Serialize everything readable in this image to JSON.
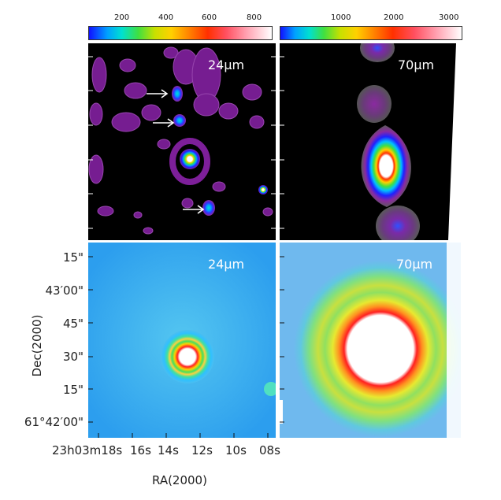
{
  "colorbars": {
    "left": {
      "ticks": [
        "200",
        "400",
        "600",
        "800"
      ]
    },
    "right": {
      "ticks": [
        "1000",
        "2000",
        "3000"
      ]
    }
  },
  "panels": {
    "top_left": {
      "band": "24μm"
    },
    "top_right": {
      "band": "70μm"
    },
    "bottom_left": {
      "band": "24μm"
    },
    "bottom_right": {
      "band": "70μm"
    }
  },
  "axes": {
    "y_title": "Dec(2000)",
    "x_title": "RA(2000)",
    "dec_ticks": [
      "15\"",
      "43′00\"",
      "45\"",
      "30\"",
      "15\"",
      "61°42′00\""
    ],
    "ra_ticks": [
      "23h03m18s",
      "16s",
      "14s",
      "12s",
      "10s",
      "08s"
    ]
  }
}
